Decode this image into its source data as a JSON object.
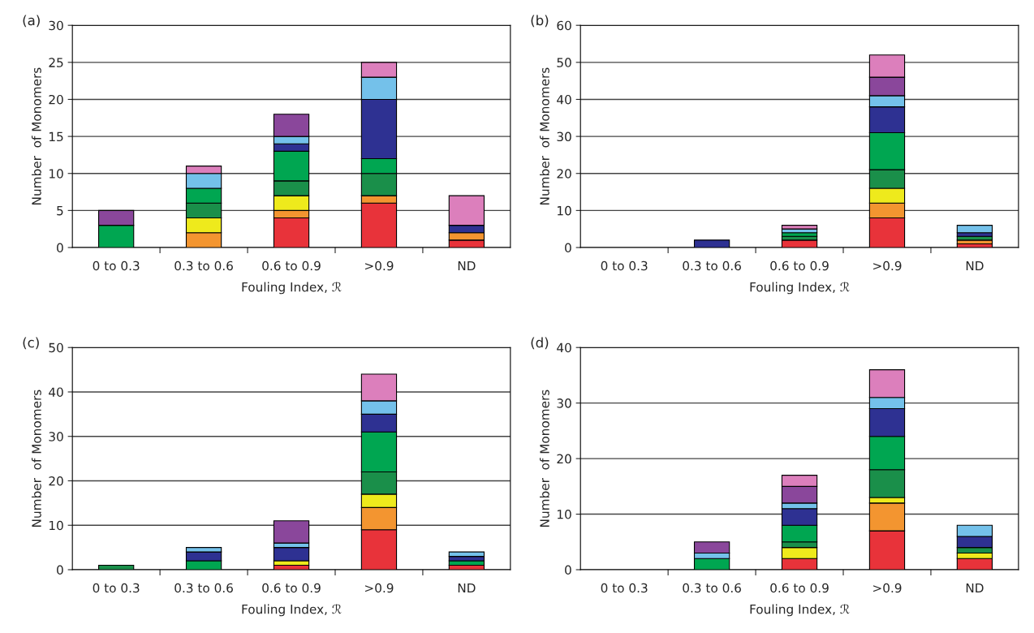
{
  "chart_data": [
    {
      "type": "bar",
      "title": "(a)",
      "xlabel": "Fouling Index, ℛ",
      "ylabel": "Number  of Monomers",
      "categories": [
        "0 to 0.3",
        "0.3 to 0.6",
        "0.6 to 0.9",
        ">0.9",
        "ND"
      ],
      "stacked": true,
      "ylim": [
        0,
        30
      ],
      "yticks": [
        0,
        5,
        10,
        15,
        20,
        25,
        30
      ],
      "grid": "y",
      "legend": false,
      "series": [
        {
          "color": "#e8333a",
          "values": [
            null,
            null,
            4,
            6,
            1
          ]
        },
        {
          "color": "#f39530",
          "values": [
            null,
            2,
            1,
            1,
            1
          ]
        },
        {
          "color": "#eeea1c",
          "values": [
            null,
            2,
            2,
            null,
            null
          ]
        },
        {
          "color": "#1a8f4a",
          "values": [
            null,
            2,
            2,
            3,
            null
          ]
        },
        {
          "color": "#00a651",
          "values": [
            3,
            2,
            4,
            2,
            null
          ]
        },
        {
          "color": "#2e3192",
          "values": [
            null,
            null,
            1,
            8,
            1
          ]
        },
        {
          "color": "#74c1ea",
          "values": [
            null,
            2,
            1,
            3,
            null
          ]
        },
        {
          "color": "#8a479b",
          "values": [
            2,
            null,
            3,
            null,
            null
          ]
        },
        {
          "color": "#dc7fbc",
          "values": [
            null,
            1,
            null,
            2,
            4
          ]
        }
      ]
    },
    {
      "type": "bar",
      "title": "(b)",
      "xlabel": "Fouling Index, ℛ",
      "ylabel": "Number  of Monomers",
      "categories": [
        "0 to 0.3",
        "0.3 to 0.6",
        "0.6 to 0.9",
        ">0.9",
        "ND"
      ],
      "stacked": true,
      "ylim": [
        0,
        60
      ],
      "yticks": [
        0,
        10,
        20,
        30,
        40,
        50,
        60
      ],
      "grid": "y",
      "legend": false,
      "series": [
        {
          "color": "#e8333a",
          "values": [
            null,
            null,
            2,
            8,
            1
          ]
        },
        {
          "color": "#f39530",
          "values": [
            null,
            null,
            null,
            4,
            1
          ]
        },
        {
          "color": "#eeea1c",
          "values": [
            null,
            null,
            null,
            4,
            null
          ]
        },
        {
          "color": "#1a8f4a",
          "values": [
            null,
            null,
            1,
            5,
            1
          ]
        },
        {
          "color": "#00a651",
          "values": [
            null,
            null,
            1,
            10,
            null
          ]
        },
        {
          "color": "#2e3192",
          "values": [
            null,
            2,
            null,
            7,
            1
          ]
        },
        {
          "color": "#74c1ea",
          "values": [
            null,
            null,
            1,
            3,
            2
          ]
        },
        {
          "color": "#8a479b",
          "values": [
            null,
            null,
            null,
            5,
            null
          ]
        },
        {
          "color": "#dc7fbc",
          "values": [
            null,
            null,
            1,
            6,
            null
          ]
        }
      ]
    },
    {
      "type": "bar",
      "title": "(c)",
      "xlabel": "Fouling Index, ℛ",
      "ylabel": "Number  of Monomers",
      "categories": [
        "0 to 0.3",
        "0.3 to 0.6",
        "0.6 to 0.9",
        ">0.9",
        "ND"
      ],
      "stacked": true,
      "ylim": [
        0,
        50
      ],
      "yticks": [
        0,
        10,
        20,
        30,
        40,
        50
      ],
      "grid": "y",
      "legend": false,
      "series": [
        {
          "color": "#e8333a",
          "values": [
            null,
            null,
            1,
            9,
            1
          ]
        },
        {
          "color": "#f39530",
          "values": [
            null,
            null,
            null,
            5,
            null
          ]
        },
        {
          "color": "#eeea1c",
          "values": [
            null,
            null,
            1,
            3,
            null
          ]
        },
        {
          "color": "#1a8f4a",
          "values": [
            1,
            null,
            null,
            5,
            null
          ]
        },
        {
          "color": "#00a651",
          "values": [
            null,
            2,
            null,
            9,
            1
          ]
        },
        {
          "color": "#2e3192",
          "values": [
            null,
            2,
            3,
            4,
            1
          ]
        },
        {
          "color": "#74c1ea",
          "values": [
            null,
            1,
            1,
            3,
            1
          ]
        },
        {
          "color": "#8a479b",
          "values": [
            null,
            null,
            5,
            null,
            null
          ]
        },
        {
          "color": "#dc7fbc",
          "values": [
            null,
            null,
            null,
            6,
            null
          ]
        }
      ]
    },
    {
      "type": "bar",
      "title": "(d)",
      "xlabel": "Fouling Index, ℛ",
      "ylabel": "Number  of Monomers",
      "categories": [
        "0 to 0.3",
        "0.3 to 0.6",
        "0.6 to 0.9",
        ">0.9",
        "ND"
      ],
      "stacked": true,
      "ylim": [
        0,
        40
      ],
      "yticks": [
        0,
        10,
        20,
        30,
        40
      ],
      "grid": "y",
      "legend": false,
      "series": [
        {
          "color": "#e8333a",
          "values": [
            null,
            null,
            2,
            7,
            2
          ]
        },
        {
          "color": "#f39530",
          "values": [
            null,
            null,
            null,
            5,
            null
          ]
        },
        {
          "color": "#eeea1c",
          "values": [
            null,
            null,
            2,
            1,
            1
          ]
        },
        {
          "color": "#1a8f4a",
          "values": [
            null,
            null,
            1,
            5,
            1
          ]
        },
        {
          "color": "#00a651",
          "values": [
            null,
            2,
            3,
            6,
            null
          ]
        },
        {
          "color": "#2e3192",
          "values": [
            null,
            null,
            3,
            5,
            2
          ]
        },
        {
          "color": "#74c1ea",
          "values": [
            null,
            1,
            1,
            2,
            2
          ]
        },
        {
          "color": "#8a479b",
          "values": [
            null,
            2,
            3,
            null,
            null
          ]
        },
        {
          "color": "#dc7fbc",
          "values": [
            null,
            null,
            2,
            5,
            null
          ]
        }
      ]
    }
  ]
}
